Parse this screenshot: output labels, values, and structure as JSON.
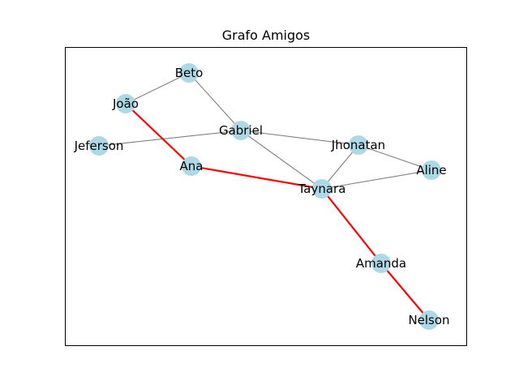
{
  "title": "Grafo Amigos",
  "colors": {
    "node_fill": "#add8e6",
    "edge": "#808080",
    "highlight_edge": "#ff0000",
    "frame": "#000000",
    "background": "#ffffff"
  },
  "nodes": [
    {
      "id": "beto",
      "label": "Beto"
    },
    {
      "id": "joao",
      "label": "João"
    },
    {
      "id": "gabriel",
      "label": "Gabriel"
    },
    {
      "id": "jeferson",
      "label": "Jeferson"
    },
    {
      "id": "jhonatan",
      "label": "Jhonatan"
    },
    {
      "id": "ana",
      "label": "Ana"
    },
    {
      "id": "aline",
      "label": "Aline"
    },
    {
      "id": "taynara",
      "label": "Taynara"
    },
    {
      "id": "amanda",
      "label": "Amanda"
    },
    {
      "id": "nelson",
      "label": "Nelson"
    }
  ],
  "edges": [
    {
      "source": "beto",
      "target": "joao",
      "highlighted": false
    },
    {
      "source": "beto",
      "target": "gabriel",
      "highlighted": false
    },
    {
      "source": "jeferson",
      "target": "gabriel",
      "highlighted": false
    },
    {
      "source": "gabriel",
      "target": "jhonatan",
      "highlighted": false
    },
    {
      "source": "gabriel",
      "target": "taynara",
      "highlighted": false
    },
    {
      "source": "jhonatan",
      "target": "aline",
      "highlighted": false
    },
    {
      "source": "jhonatan",
      "target": "taynara",
      "highlighted": false
    },
    {
      "source": "taynara",
      "target": "aline",
      "highlighted": false
    },
    {
      "source": "joao",
      "target": "ana",
      "highlighted": true
    },
    {
      "source": "ana",
      "target": "taynara",
      "highlighted": true
    },
    {
      "source": "taynara",
      "target": "amanda",
      "highlighted": true
    },
    {
      "source": "amanda",
      "target": "nelson",
      "highlighted": true
    }
  ]
}
